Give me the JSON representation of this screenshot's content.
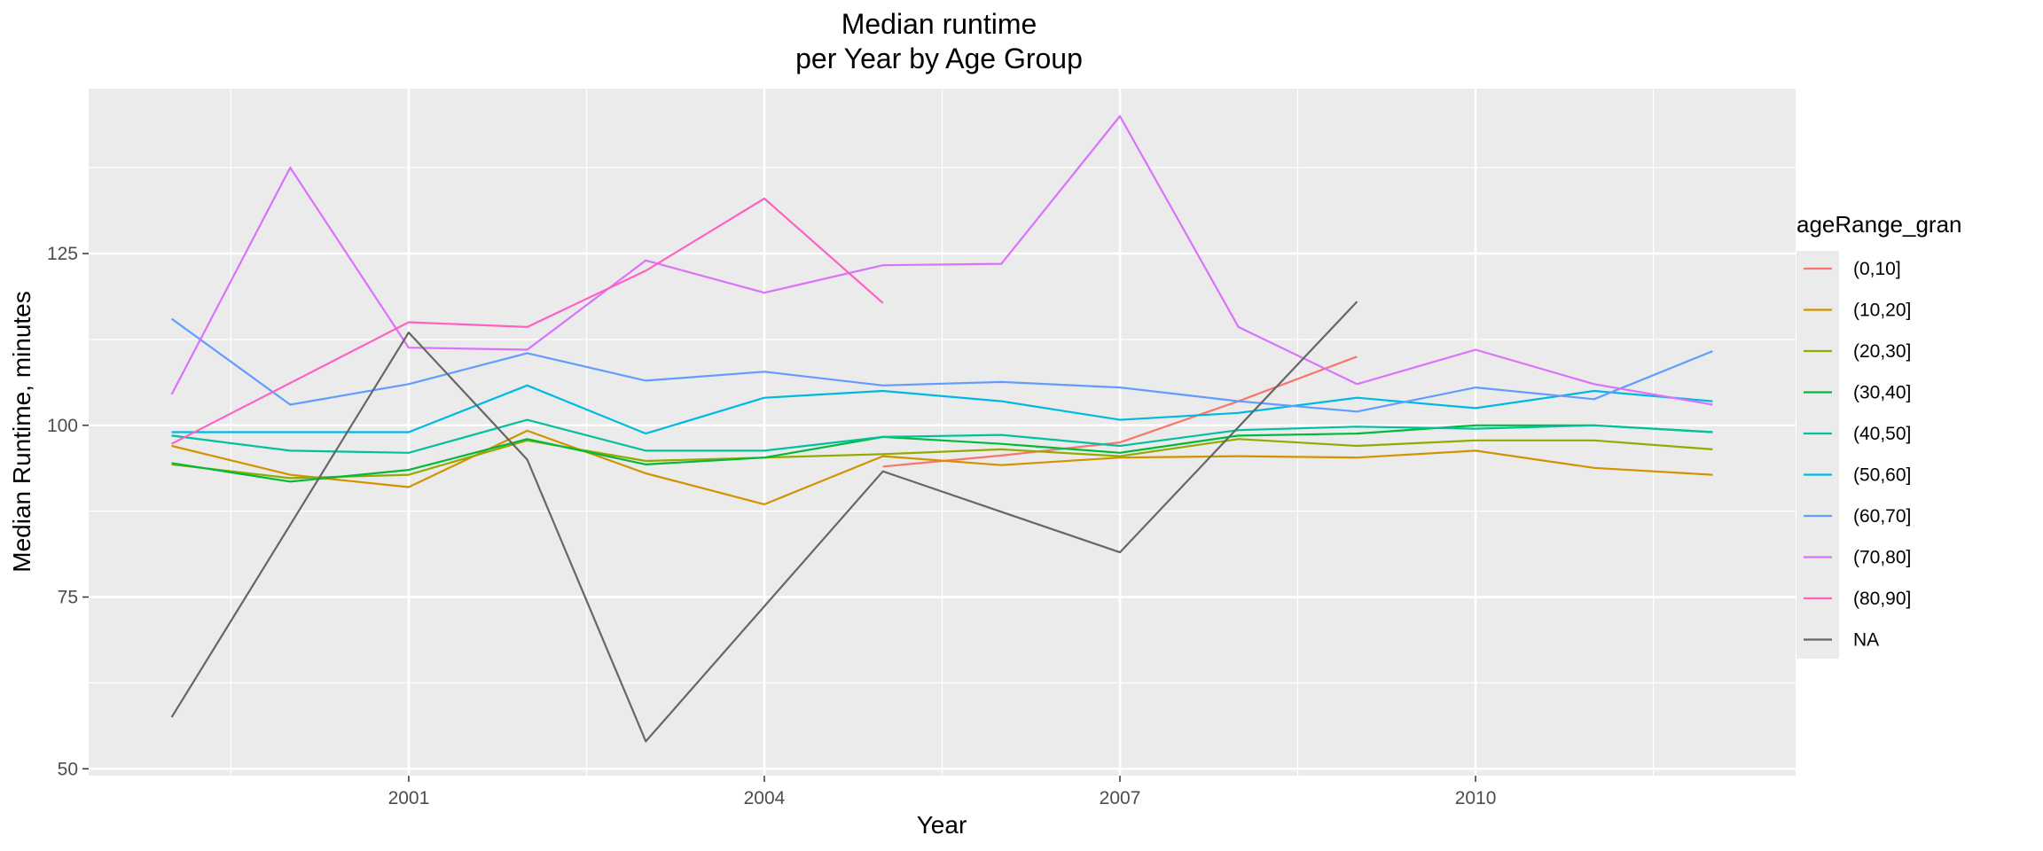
{
  "chart_data": {
    "type": "line",
    "title": "Median runtime",
    "subtitle": "per Year by Age Group",
    "xlabel": "Year",
    "ylabel": "Median Runtime, minutes",
    "xlim": [
      1998.3,
      2012.7
    ],
    "ylim": [
      49,
      149
    ],
    "x_ticks": [
      2001,
      2004,
      2007,
      2010
    ],
    "y_ticks": [
      50,
      75,
      100,
      125
    ],
    "grid": true,
    "legend_title": "ageRange_gran",
    "legend_position": "right",
    "series": [
      {
        "name": "(0,10]",
        "color": "#F8766D",
        "x": [
          2005,
          2006,
          2007,
          2008,
          2009
        ],
        "y": [
          94.0,
          95.6,
          97.5,
          103.5,
          110.0
        ]
      },
      {
        "name": "(10,20]",
        "color": "#D39200",
        "x": [
          1999,
          2000,
          2001,
          2002,
          2003,
          2004,
          2005,
          2006,
          2007,
          2008,
          2009,
          2010,
          2011,
          2012
        ],
        "y": [
          97.0,
          92.8,
          91.0,
          99.2,
          93.0,
          88.5,
          95.5,
          94.2,
          95.3,
          95.5,
          95.3,
          96.3,
          93.8,
          92.8
        ]
      },
      {
        "name": "(20,30]",
        "color": "#93AA00",
        "x": [
          1999,
          2000,
          2001,
          2002,
          2003,
          2004,
          2005,
          2006,
          2007,
          2008,
          2009,
          2010,
          2011,
          2012
        ],
        "y": [
          94.3,
          92.3,
          92.8,
          97.8,
          94.8,
          95.3,
          95.8,
          96.5,
          95.5,
          98.0,
          97.0,
          97.8,
          97.8,
          96.5
        ]
      },
      {
        "name": "(30,40]",
        "color": "#00BA38",
        "x": [
          1999,
          2000,
          2001,
          2002,
          2003,
          2004,
          2005,
          2006,
          2007,
          2008,
          2009,
          2010,
          2011,
          2012
        ],
        "y": [
          94.5,
          91.8,
          93.5,
          98.0,
          94.3,
          95.3,
          98.3,
          97.3,
          96.0,
          98.5,
          98.8,
          100.0,
          100.0,
          99.0
        ]
      },
      {
        "name": "(40,50]",
        "color": "#00C19F",
        "x": [
          1999,
          2000,
          2001,
          2002,
          2003,
          2004,
          2005,
          2006,
          2007,
          2008,
          2009,
          2010,
          2011,
          2012
        ],
        "y": [
          98.5,
          96.3,
          96.0,
          100.8,
          96.3,
          96.3,
          98.3,
          98.6,
          97.0,
          99.3,
          99.8,
          99.5,
          100.0,
          99.0
        ]
      },
      {
        "name": "(50,60]",
        "color": "#00B9E3",
        "x": [
          1999,
          2000,
          2001,
          2002,
          2003,
          2004,
          2005,
          2006,
          2007,
          2008,
          2009,
          2010,
          2011,
          2012
        ],
        "y": [
          99.0,
          99.0,
          99.0,
          105.8,
          98.8,
          104.0,
          105.0,
          103.5,
          100.8,
          101.8,
          104.0,
          102.5,
          105.0,
          103.5
        ]
      },
      {
        "name": "(60,70]",
        "color": "#619CFF",
        "x": [
          1999,
          2000,
          2001,
          2002,
          2003,
          2004,
          2005,
          2006,
          2007,
          2008,
          2009,
          2010,
          2011,
          2012
        ],
        "y": [
          115.5,
          103.0,
          106.0,
          110.5,
          106.5,
          107.8,
          105.8,
          106.3,
          105.5,
          103.5,
          102.0,
          105.5,
          103.8,
          110.8
        ]
      },
      {
        "name": "(70,80]",
        "color": "#DB72FB",
        "x": [
          1999,
          2000,
          2001,
          2002,
          2003,
          2004,
          2005,
          2006,
          2007,
          2008,
          2009,
          2010,
          2011,
          2012
        ],
        "y": [
          104.5,
          137.5,
          111.3,
          111.0,
          124.0,
          119.3,
          123.3,
          123.5,
          145.0,
          114.3,
          106.0,
          111.0,
          106.0,
          103.0
        ]
      },
      {
        "name": "(80,90]",
        "color": "#FF61C3",
        "x": [
          1999,
          2001,
          2002,
          2003,
          2004,
          2005
        ],
        "y": [
          97.3,
          115.0,
          114.3,
          122.5,
          133.0,
          117.8
        ]
      },
      {
        "name": "NA",
        "color": "#666666",
        "x": [
          1999,
          2001,
          2002,
          2003,
          2005,
          2007,
          2009
        ],
        "y": [
          57.5,
          113.5,
          95.0,
          54.0,
          93.3,
          81.5,
          118.0
        ]
      }
    ]
  }
}
